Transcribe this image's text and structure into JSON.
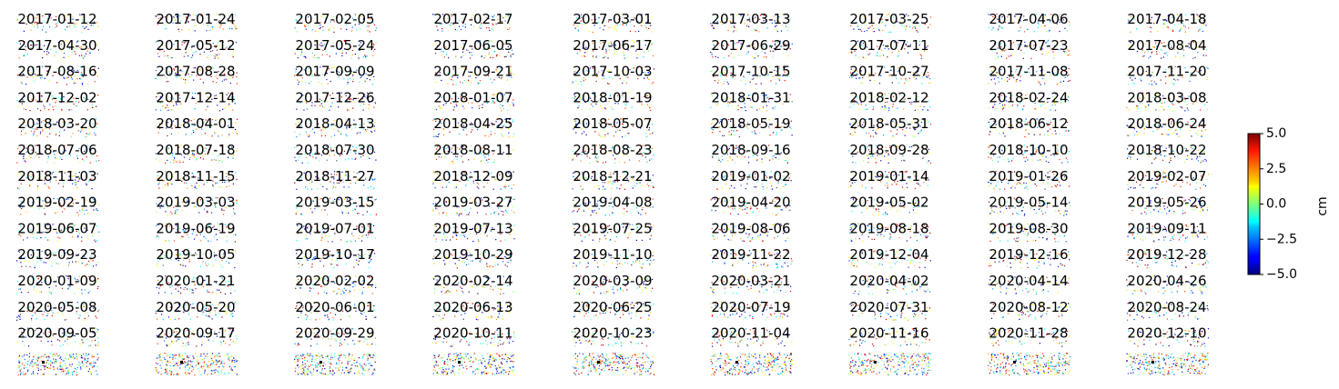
{
  "chart_data": {
    "type": "heatmap",
    "colormap": "jet",
    "panel_columns": 9,
    "panel_titles": [
      "2017-01-12",
      "2017-01-24",
      "2017-02-05",
      "2017-02-17",
      "2017-03-01",
      "2017-03-13",
      "2017-03-25",
      "2017-04-06",
      "2017-04-18",
      "2017-04-30",
      "2017-05-12",
      "2017-05-24",
      "2017-06-05",
      "2017-06-17",
      "2017-06-29",
      "2017-07-11",
      "2017-07-23",
      "2017-08-04",
      "2017-08-16",
      "2017-08-28",
      "2017-09-09",
      "2017-09-21",
      "2017-10-03",
      "2017-10-15",
      "2017-10-27",
      "2017-11-08",
      "2017-11-20",
      "2017-12-02",
      "2017-12-14",
      "2017-12-26",
      "2018-01-07",
      "2018-01-19",
      "2018-01-31",
      "2018-02-12",
      "2018-02-24",
      "2018-03-08",
      "2018-03-20",
      "2018-04-01",
      "2018-04-13",
      "2018-04-25",
      "2018-05-07",
      "2018-05-19",
      "2018-05-31",
      "2018-06-12",
      "2018-06-24",
      "2018-07-06",
      "2018-07-18",
      "2018-07-30",
      "2018-08-11",
      "2018-08-23",
      "2018-09-16",
      "2018-09-28",
      "2018-10-10",
      "2018-10-22",
      "2018-11-03",
      "2018-11-15",
      "2018-11-27",
      "2018-12-09",
      "2018-12-21",
      "2019-01-02",
      "2019-01-14",
      "2019-01-26",
      "2019-02-07",
      "2019-02-19",
      "2019-03-03",
      "2019-03-15",
      "2019-03-27",
      "2019-04-08",
      "2019-04-20",
      "2019-05-02",
      "2019-05-14",
      "2019-05-26",
      "2019-06-07",
      "2019-06-19",
      "2019-07-01",
      "2019-07-13",
      "2019-07-25",
      "2019-08-06",
      "2019-08-18",
      "2019-08-30",
      "2019-09-11",
      "2019-09-23",
      "2019-10-05",
      "2019-10-17",
      "2019-10-29",
      "2019-11-10",
      "2019-11-22",
      "2019-12-04",
      "2019-12-16",
      "2019-12-28",
      "2020-01-09",
      "2020-01-21",
      "2020-02-02",
      "2020-02-14",
      "2020-03-09",
      "2020-03-21",
      "2020-04-02",
      "2020-04-14",
      "2020-04-26",
      "2020-05-08",
      "2020-05-20",
      "2020-06-01",
      "2020-06-13",
      "2020-06-25",
      "2020-07-19",
      "2020-07-31",
      "2020-08-12",
      "2020-08-24",
      "2020-09-05",
      "2020-09-17",
      "2020-09-29",
      "2020-10-11",
      "2020-10-23",
      "2020-11-04",
      "2020-11-16",
      "2020-11-28",
      "2020-12-10"
    ],
    "colorbar": {
      "label": "cm",
      "range": [
        -5.0,
        5.0
      ],
      "ticks": [
        "5.0",
        "2.5",
        "0.0",
        "−2.5",
        "−5.0"
      ]
    }
  }
}
